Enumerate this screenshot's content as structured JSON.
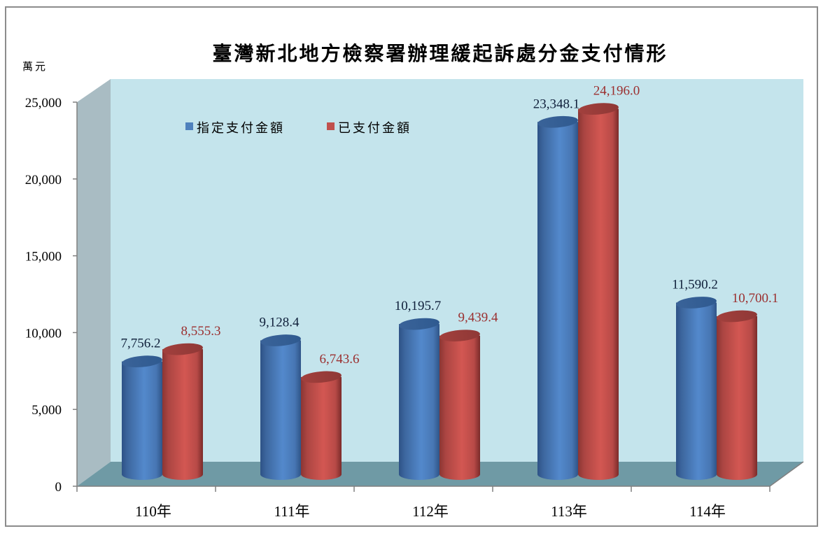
{
  "chart_data": {
    "type": "bar",
    "subtype": "3d-cylinder-clustered",
    "title": "臺灣新北地方檢察署辦理緩起訴處分金支付情形",
    "ylabel": "萬元",
    "xlabel": "",
    "ylim": [
      0,
      25000
    ],
    "yticks": [
      0,
      5000,
      10000,
      15000,
      20000,
      25000
    ],
    "ytick_labels": [
      "0",
      "5,000",
      "10,000",
      "15,000",
      "20,000",
      "25,000"
    ],
    "grid": false,
    "legend_position": "top-left inside plot",
    "categories": [
      "110年",
      "111年",
      "112年",
      "113年",
      "114年"
    ],
    "series": [
      {
        "name": "指定支付金額",
        "color": "#4f81bd",
        "values": [
          7756.2,
          9128.4,
          10195.7,
          23348.1,
          11590.2
        ],
        "labels": [
          "7,756.2",
          "9,128.4",
          "10,195.7",
          "23,348.1",
          "11,590.2"
        ]
      },
      {
        "name": "已支付金額",
        "color": "#c0504d",
        "values": [
          8555.3,
          6743.6,
          9439.4,
          24196.0,
          10700.1
        ],
        "labels": [
          "8,555.3",
          "6,743.6",
          "9,439.4",
          "24,196.0",
          "10,700.1"
        ]
      }
    ]
  },
  "colors": {
    "back_wall": "#c4e4ec",
    "side_wall": "#a9bcc3",
    "floor": "#6f9aa5",
    "axis": "#808080",
    "frame": "#8c8c8c",
    "label_series_a": "#0f1f3a",
    "label_series_b": "#9b2f2f"
  }
}
